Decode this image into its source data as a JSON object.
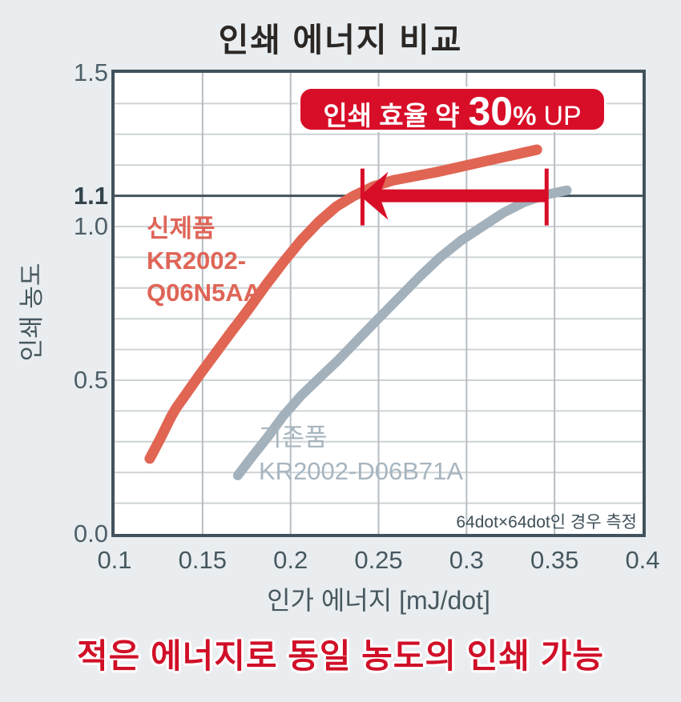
{
  "title": "인쇄 에너지 비교",
  "banner": {
    "prefix": "인쇄 효율 약",
    "value": "30",
    "percent": "%",
    "suffix": "UP"
  },
  "labels": {
    "new_product": [
      "신제품",
      "KR2002-",
      "Q06N5AA"
    ],
    "old_product": [
      "기존품",
      "KR2002-D06B71A"
    ]
  },
  "caption": "적은 에너지로 동일 농도의 인쇄 가능",
  "colors": {
    "background": "#e9edf0",
    "plot_background": "#ffffff",
    "plot_border": "#42525c",
    "grid_vertical": "#b5bec4",
    "grid_horizontal": "#cdd3d6",
    "highlight_line": "#42525c",
    "series_new": "#e06553",
    "series_old": "#a3b1bc",
    "accent_red": "#d80e28",
    "caption_red": "#d01028",
    "axis_text": "#47585f"
  },
  "chart_data": {
    "type": "line",
    "title": "인쇄 에너지 비교",
    "xlabel": "인가 에너지 [mJ/dot]",
    "ylabel": "인쇄 농도",
    "xlim": [
      0.1,
      0.4
    ],
    "ylim": [
      0.0,
      1.5
    ],
    "grid": {
      "x_step": 0.05,
      "y_step": 0.1,
      "on": true
    },
    "highlight_y": 1.1,
    "xticks": [
      {
        "v": 0.1,
        "label": "0.1"
      },
      {
        "v": 0.15,
        "label": "0.15"
      },
      {
        "v": 0.2,
        "label": "0.2"
      },
      {
        "v": 0.25,
        "label": "0.25"
      },
      {
        "v": 0.3,
        "label": "0.3"
      },
      {
        "v": 0.35,
        "label": "0.35"
      },
      {
        "v": 0.4,
        "label": "0.4"
      }
    ],
    "yticks": [
      {
        "v": 1.5,
        "label": "1.5",
        "bold": false
      },
      {
        "v": 1.1,
        "label": "1.1",
        "bold": true
      },
      {
        "v": 1.0,
        "label": "1.0",
        "bold": false
      },
      {
        "v": 0.5,
        "label": "0.5",
        "bold": false
      },
      {
        "v": 0.0,
        "label": "0.0",
        "bold": false
      }
    ],
    "series": [
      {
        "name": "신제품 KR2002-Q06N5AA",
        "color": "#e06553",
        "stroke_width": 13,
        "points": [
          [
            0.12,
            0.245
          ],
          [
            0.126,
            0.31
          ],
          [
            0.132,
            0.38
          ],
          [
            0.135,
            0.41
          ],
          [
            0.14,
            0.45
          ],
          [
            0.148,
            0.515
          ],
          [
            0.157,
            0.585
          ],
          [
            0.166,
            0.655
          ],
          [
            0.176,
            0.73
          ],
          [
            0.186,
            0.81
          ],
          [
            0.196,
            0.885
          ],
          [
            0.206,
            0.955
          ],
          [
            0.216,
            1.015
          ],
          [
            0.226,
            1.065
          ],
          [
            0.236,
            1.1
          ],
          [
            0.247,
            1.13
          ],
          [
            0.258,
            1.15
          ],
          [
            0.27,
            1.163
          ],
          [
            0.283,
            1.177
          ],
          [
            0.297,
            1.195
          ],
          [
            0.311,
            1.213
          ],
          [
            0.326,
            1.232
          ],
          [
            0.34,
            1.25
          ]
        ]
      },
      {
        "name": "기존품 KR2002-D06B71A",
        "color": "#a3b1bc",
        "stroke_width": 12,
        "points": [
          [
            0.17,
            0.19
          ],
          [
            0.178,
            0.25
          ],
          [
            0.187,
            0.315
          ],
          [
            0.196,
            0.385
          ],
          [
            0.206,
            0.45
          ],
          [
            0.216,
            0.505
          ],
          [
            0.227,
            0.565
          ],
          [
            0.238,
            0.63
          ],
          [
            0.249,
            0.695
          ],
          [
            0.261,
            0.765
          ],
          [
            0.273,
            0.835
          ],
          [
            0.285,
            0.9
          ],
          [
            0.297,
            0.955
          ],
          [
            0.309,
            1.0
          ],
          [
            0.321,
            1.045
          ],
          [
            0.333,
            1.08
          ],
          [
            0.345,
            1.103
          ],
          [
            0.357,
            1.118
          ]
        ]
      }
    ],
    "annotation_arrow": {
      "y": 1.1,
      "x_start": 0.3455,
      "x_end": 0.2395,
      "meaning": "인쇄 효율 약 30% UP"
    },
    "note": "64dot×64dot인 경우 측정",
    "legend_position": "inline-labels"
  }
}
